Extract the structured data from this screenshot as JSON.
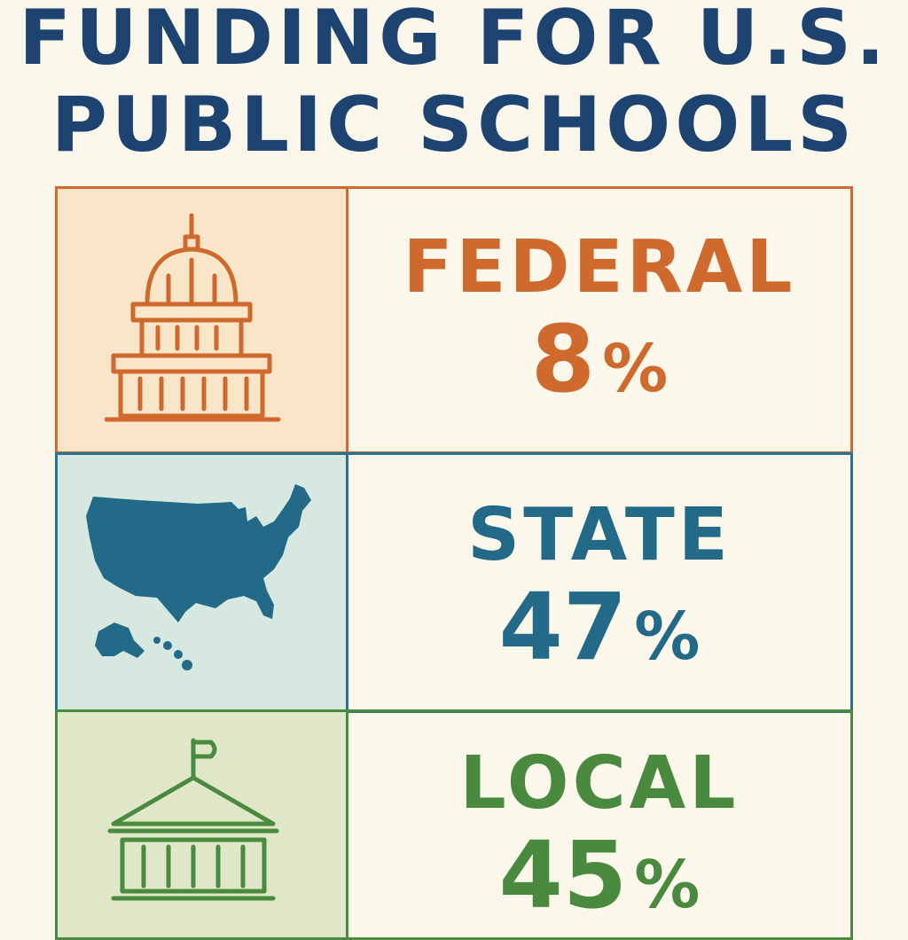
{
  "title": {
    "line1": "FUNDING FOR U.S.",
    "line2": "PUBLIC SCHOOLS"
  },
  "rows": [
    {
      "label": "FEDERAL",
      "value": "8",
      "unit": "%",
      "icon": "capitol-icon",
      "color": "#d0692e"
    },
    {
      "label": "STATE",
      "value": "47",
      "unit": "%",
      "icon": "usa-map-icon",
      "color": "#226a88"
    },
    {
      "label": "LOCAL",
      "value": "45",
      "unit": "%",
      "icon": "schoolhouse-icon",
      "color": "#4a8a3e"
    }
  ]
}
